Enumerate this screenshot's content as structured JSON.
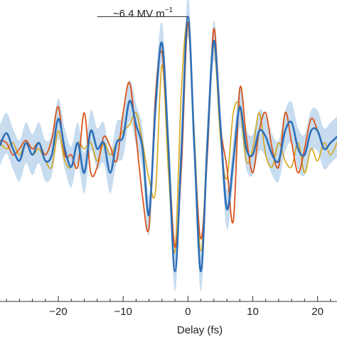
{
  "chart_data": {
    "type": "line",
    "title": "",
    "xlabel": "Delay (fs)",
    "ylabel": "",
    "xlim": [
      -29,
      23
    ],
    "ylim": [
      -1.3,
      1.08
    ],
    "xticks": [
      -20,
      -10,
      0,
      10,
      20
    ],
    "xtick_labels": [
      "−20",
      "−10",
      "0",
      "10",
      "20"
    ],
    "grid": false,
    "legend": "none",
    "annotation": {
      "text_main": "~6.4 MV m",
      "text_sup": "−1",
      "line_x": [
        -14,
        0
      ],
      "line_y": 1.0
    },
    "series": [
      {
        "color": "#d4a516",
        "width": 1.6,
        "x": [
          -29,
          -28,
          -27,
          -26,
          -25,
          -24,
          -23,
          -22,
          -21,
          -20,
          -19,
          -18,
          -17,
          -16,
          -15,
          -14,
          -13,
          -12,
          -11,
          -10,
          -9,
          -8,
          -7,
          -6,
          -5,
          -4,
          -3,
          -2,
          -1,
          0,
          1,
          2,
          3,
          4,
          5,
          6,
          7,
          8,
          9,
          10,
          11,
          12,
          13,
          14,
          15,
          16,
          17,
          18,
          19,
          20,
          21,
          22,
          23
        ],
        "y": [
          -0.05,
          -0.1,
          -0.05,
          -0.15,
          -0.05,
          -0.15,
          -0.1,
          -0.2,
          -0.25,
          0.05,
          -0.2,
          -0.25,
          -0.05,
          -0.1,
          -0.05,
          -0.2,
          -0.05,
          -0.15,
          -0.05,
          0.05,
          0.1,
          0.2,
          -0.05,
          -0.35,
          -0.45,
          0.6,
          -0.3,
          -0.95,
          0.4,
          0.95,
          0.0,
          -0.95,
          0.0,
          0.75,
          0.0,
          -0.35,
          0.2,
          0.25,
          -0.2,
          -0.1,
          0.2,
          -0.15,
          -0.25,
          -0.05,
          -0.2,
          -0.25,
          -0.05,
          -0.3,
          -0.1,
          -0.2,
          -0.05,
          -0.15,
          -0.05
        ]
      },
      {
        "color": "#d95319",
        "width": 1.8,
        "x": [
          -29,
          -28,
          -27,
          -26,
          -25,
          -24,
          -23,
          -22,
          -21,
          -20,
          -19,
          -18,
          -17,
          -16,
          -15,
          -14,
          -13,
          -12,
          -11,
          -10,
          -9,
          -8,
          -7,
          -6,
          -5,
          -4,
          -3,
          -2,
          -1,
          0,
          1,
          2,
          3,
          4,
          5,
          6,
          7,
          8,
          9,
          10,
          11,
          12,
          13,
          14,
          15,
          16,
          17,
          18,
          19,
          20,
          21,
          22,
          23
        ],
        "y": [
          -0.03,
          -0.05,
          -0.15,
          -0.1,
          -0.03,
          -0.1,
          -0.05,
          -0.15,
          -0.02,
          0.25,
          -0.15,
          -0.15,
          -0.25,
          0.2,
          -0.3,
          -0.25,
          0.0,
          -0.08,
          -0.2,
          0.2,
          0.45,
          0.0,
          -0.5,
          -0.75,
          0.35,
          0.7,
          -0.1,
          -0.92,
          -0.25,
          0.95,
          -0.1,
          -0.85,
          -0.15,
          0.9,
          0.1,
          -0.25,
          -0.7,
          0.4,
          0.0,
          -0.3,
          0.05,
          0.2,
          -0.1,
          -0.25,
          0.2,
          -0.05,
          -0.3,
          -0.1,
          0.15,
          0.05,
          -0.1,
          -0.05,
          0.0
        ]
      },
      {
        "color": "#2e6fb7",
        "width": 2.6,
        "band": 0.17,
        "band_color": "#c7dcef",
        "x": [
          -29,
          -28,
          -27,
          -26,
          -25,
          -24,
          -23,
          -22,
          -21,
          -20,
          -19,
          -18,
          -17,
          -16,
          -15,
          -14,
          -13,
          -12,
          -11,
          -10,
          -9,
          -8,
          -7,
          -6,
          -5,
          -4,
          -3,
          -2,
          -1,
          0,
          1,
          2,
          3,
          4,
          5,
          6,
          7,
          8,
          9,
          10,
          11,
          12,
          13,
          14,
          15,
          16,
          17,
          18,
          19,
          20,
          21,
          22,
          23
        ],
        "y": [
          -0.07,
          0.03,
          -0.1,
          -0.2,
          -0.05,
          -0.15,
          -0.05,
          -0.2,
          -0.15,
          0.15,
          -0.1,
          -0.25,
          -0.05,
          -0.3,
          0.05,
          -0.1,
          -0.05,
          -0.3,
          -0.05,
          0.0,
          0.3,
          0.1,
          -0.1,
          -0.65,
          0.25,
          0.78,
          -0.1,
          -1.12,
          -0.1,
          1.0,
          -0.1,
          -1.12,
          -0.05,
          0.8,
          0.1,
          -0.6,
          -0.2,
          0.25,
          -0.1,
          -0.15,
          0.05,
          0.0,
          -0.15,
          -0.2,
          0.05,
          0.12,
          -0.1,
          -0.15,
          0.05,
          0.05,
          -0.1,
          -0.05,
          0.0
        ]
      }
    ]
  }
}
